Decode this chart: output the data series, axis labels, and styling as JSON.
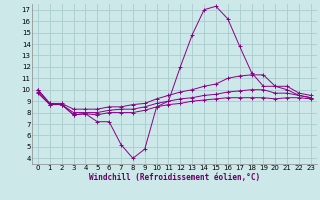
{
  "xlabel": "Windchill (Refroidissement éolien,°C)",
  "background_color": "#cce8e8",
  "line_color": "#880088",
  "grid_color": "#aacccc",
  "xlim": [
    -0.5,
    23.5
  ],
  "ylim": [
    3.5,
    17.5
  ],
  "yticks": [
    4,
    5,
    6,
    7,
    8,
    9,
    10,
    11,
    12,
    13,
    14,
    15,
    16,
    17
  ],
  "xticks": [
    0,
    1,
    2,
    3,
    4,
    5,
    6,
    7,
    8,
    9,
    10,
    11,
    12,
    13,
    14,
    15,
    16,
    17,
    18,
    19,
    20,
    21,
    22,
    23
  ],
  "series": [
    {
      "x": [
        0,
        1,
        2,
        3,
        4,
        5,
        6,
        7,
        8,
        9,
        10,
        11,
        12,
        13,
        14,
        15,
        16,
        17,
        18,
        19,
        20,
        21,
        22,
        23
      ],
      "y": [
        10.0,
        8.8,
        8.7,
        7.8,
        7.9,
        7.2,
        7.2,
        5.2,
        4.0,
        4.8,
        8.5,
        9.0,
        12.0,
        14.8,
        17.0,
        17.3,
        16.2,
        13.8,
        11.5,
        10.3,
        10.3,
        10.0,
        9.5,
        9.3
      ]
    },
    {
      "x": [
        0,
        1,
        2,
        3,
        4,
        5,
        6,
        7,
        8,
        9,
        10,
        11,
        12,
        13,
        14,
        15,
        16,
        17,
        18,
        19,
        20,
        21,
        22,
        23
      ],
      "y": [
        10.0,
        8.8,
        8.8,
        8.3,
        8.3,
        8.3,
        8.5,
        8.5,
        8.7,
        8.8,
        9.2,
        9.5,
        9.8,
        10.0,
        10.3,
        10.5,
        11.0,
        11.2,
        11.3,
        11.3,
        10.3,
        10.3,
        9.7,
        9.5
      ]
    },
    {
      "x": [
        0,
        1,
        2,
        3,
        4,
        5,
        6,
        7,
        8,
        9,
        10,
        11,
        12,
        13,
        14,
        15,
        16,
        17,
        18,
        19,
        20,
        21,
        22,
        23
      ],
      "y": [
        9.8,
        8.7,
        8.7,
        8.0,
        8.0,
        8.0,
        8.2,
        8.3,
        8.3,
        8.5,
        8.8,
        9.0,
        9.2,
        9.3,
        9.5,
        9.6,
        9.8,
        9.9,
        10.0,
        10.0,
        9.7,
        9.7,
        9.5,
        9.3
      ]
    },
    {
      "x": [
        0,
        1,
        2,
        3,
        4,
        5,
        6,
        7,
        8,
        9,
        10,
        11,
        12,
        13,
        14,
        15,
        16,
        17,
        18,
        19,
        20,
        21,
        22,
        23
      ],
      "y": [
        9.7,
        8.7,
        8.7,
        7.8,
        7.9,
        7.8,
        8.0,
        8.0,
        8.0,
        8.2,
        8.5,
        8.7,
        8.8,
        9.0,
        9.1,
        9.2,
        9.3,
        9.3,
        9.3,
        9.3,
        9.2,
        9.3,
        9.3,
        9.2
      ]
    }
  ]
}
